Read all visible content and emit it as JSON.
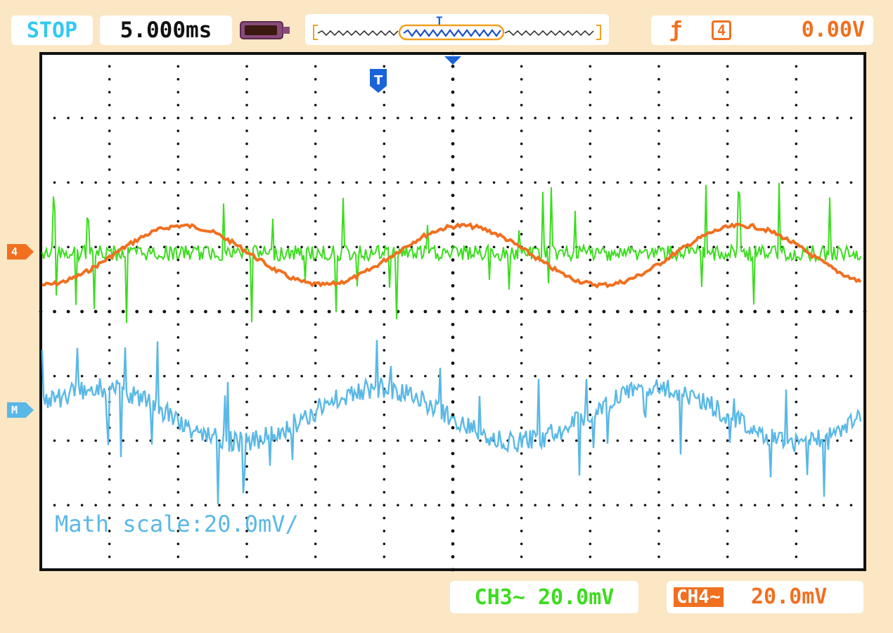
{
  "header": {
    "run_state": "STOP",
    "timebase": "5.000ms",
    "trigger": {
      "edge_symbol": "ƒ",
      "source": "4",
      "level": "0.00V",
      "overview_marker": "T"
    }
  },
  "screen": {
    "trigger_marker": "T",
    "math_scale_label": "Math scale:20.0mV/",
    "channel_markers": {
      "ch4": "4",
      "math": "M"
    }
  },
  "footer": {
    "ch3": "CH3~ 20.0mV",
    "ch4_label": "CH4~",
    "ch4_value": "20.0mV"
  },
  "colors": {
    "background": "#fbe7c4",
    "ch3": "#3ddc20",
    "ch4": "#f07020",
    "math": "#5ab8e6",
    "trigger_marker": "#1a64d8",
    "status": "#33c8f0"
  },
  "icons": [
    "battery-icon",
    "trigger-edge-icon",
    "trigger-marker-icon",
    "channel-marker-icon"
  ]
}
